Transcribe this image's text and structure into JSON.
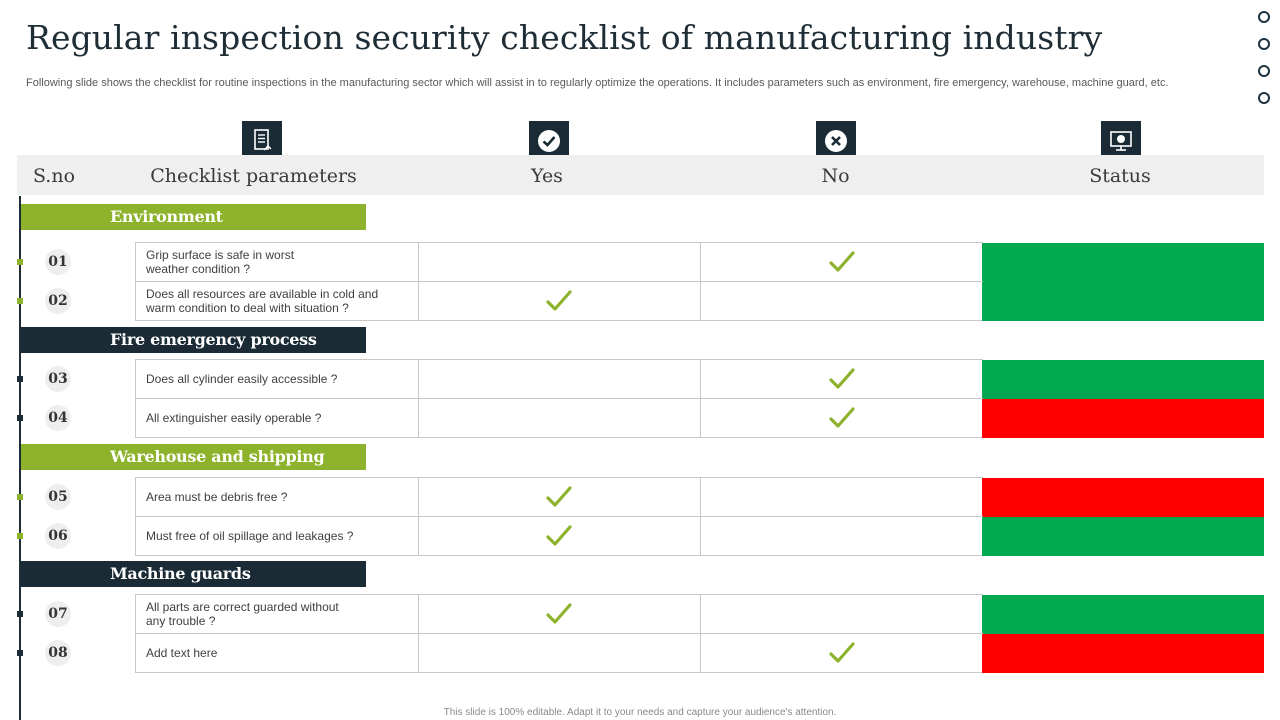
{
  "title": "Regular inspection security checklist of manufacturing industry",
  "subtitle": "Following slide shows the checklist for routine inspections in the manufacturing sector which will assist in to regularly optimize the operations. It includes parameters such as environment, fire emergency, warehouse, machine guard, etc.",
  "columns": {
    "sno": "S.no",
    "parameters": "Checklist parameters",
    "yes": "Yes",
    "no": "No",
    "status": "Status"
  },
  "header_icons": {
    "parameters": "document-icon",
    "yes": "check-circle-icon",
    "no": "x-circle-icon",
    "status": "monitor-icon"
  },
  "sections": [
    {
      "label": "Environment",
      "color": "#8db22c"
    },
    {
      "label": "Fire emergency process",
      "color": "#1a2b36"
    },
    {
      "label": "Warehouse and shipping",
      "color": "#8db22c"
    },
    {
      "label": "Machine guards",
      "color": "#1a2b36"
    }
  ],
  "rows": [
    {
      "num": "01",
      "text_line1": "Grip surface is safe in worst",
      "text_line2": "weather condition ?",
      "answer": "no",
      "status": "green"
    },
    {
      "num": "02",
      "text_line1": "Does all resources are available in cold and",
      "text_line2": "warm condition to deal with situation ?",
      "answer": "yes",
      "status": "green"
    },
    {
      "num": "03",
      "text_line1": "Does all cylinder easily accessible ?",
      "text_line2": "",
      "answer": "no",
      "status": "green"
    },
    {
      "num": "04",
      "text_line1": "All extinguisher easily operable ?",
      "text_line2": "",
      "answer": "no",
      "status": "red"
    },
    {
      "num": "05",
      "text_line1": "Area must be debris free ?",
      "text_line2": "",
      "answer": "yes",
      "status": "red"
    },
    {
      "num": "06",
      "text_line1": "Must free of oil spillage and leakages ?",
      "text_line2": "",
      "answer": "yes",
      "status": "green"
    },
    {
      "num": "07",
      "text_line1": "All parts are correct guarded without",
      "text_line2": "any trouble ?",
      "answer": "yes",
      "status": "green"
    },
    {
      "num": "08",
      "text_line1": "Add text here",
      "text_line2": "",
      "answer": "no",
      "status": "red"
    }
  ],
  "colors": {
    "status_green": "#00a94f",
    "status_red": "#ff0000",
    "check": "#8db22c",
    "accent_green": "#8db22c",
    "dark": "#1a2b36"
  },
  "footer": "This slide is 100% editable. Adapt it to your needs and capture your audience's attention."
}
